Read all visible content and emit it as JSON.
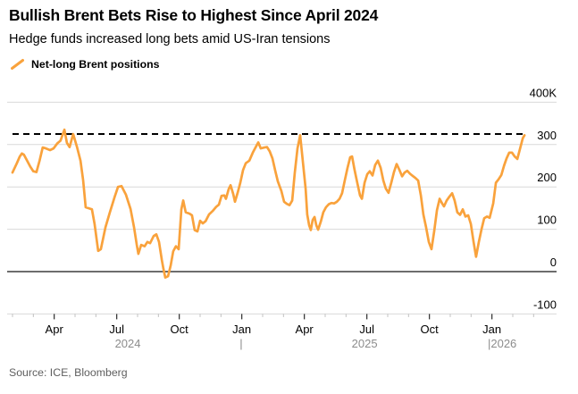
{
  "header": {
    "title": "Bullish Brent Bets Rise to Highest Since April 2024",
    "subtitle": "Hedge funds increased long bets amid US-Iran tensions"
  },
  "legend": {
    "series_label": "Net-long Brent positions"
  },
  "source_line": "Source: ICE, Bloomberg",
  "colors": {
    "line": "#F9A23C",
    "gridline": "#D9D9D9",
    "zero_line": "#3D3D3D",
    "reference_dashed": "#000000",
    "axis_text": "#000000",
    "year_text": "#8C8C8C",
    "major_tick": "#2B2B2B",
    "minor_tick": "#C0C0C0",
    "source_text": "#5F5F5F"
  },
  "chart_data": {
    "type": "line",
    "title": "Bullish Brent Bets Rise to Highest Since April 2024",
    "y_unit": "K (thousands of contracts)",
    "y_range": [
      -100,
      400
    ],
    "y_ticks": [
      {
        "v": 400,
        "label": "400K"
      },
      {
        "v": 300,
        "label": "300"
      },
      {
        "v": 200,
        "label": "200"
      },
      {
        "v": 100,
        "label": "100"
      },
      {
        "v": 0,
        "label": "0"
      },
      {
        "v": -100,
        "label": "-100"
      }
    ],
    "x_unit": "months since 2024-02-01 (weekly positioning data, values estimated from gridlines)",
    "x_range": [
      0,
      25.3
    ],
    "x_major_ticks": [
      {
        "t": 2,
        "label": "Apr"
      },
      {
        "t": 5,
        "label": "Jul"
      },
      {
        "t": 8,
        "label": "Oct"
      },
      {
        "t": 11,
        "label": "Jan"
      },
      {
        "t": 14,
        "label": "Apr"
      },
      {
        "t": 17,
        "label": "Jul"
      },
      {
        "t": 20,
        "label": "Oct"
      },
      {
        "t": 23,
        "label": "Jan"
      }
    ],
    "x_minor_ticks_months": [
      0,
      1,
      3,
      4,
      6,
      7,
      9,
      10,
      12,
      13,
      15,
      16,
      18,
      19,
      21,
      22,
      24,
      25
    ],
    "year_labels": [
      {
        "t": 5.53,
        "label": "2024",
        "anchor": "middle"
      },
      {
        "t": 10.97,
        "label": "|",
        "anchor": "middle"
      },
      {
        "t": 16.89,
        "label": "2025",
        "anchor": "middle"
      },
      {
        "t": 22.8,
        "label": "|2026",
        "anchor": "start"
      }
    ],
    "reference_line": {
      "value": 325,
      "style": "dashed"
    },
    "grid": "horizontal",
    "legend_position": "top-left",
    "series": [
      {
        "name": "Net-long Brent positions",
        "color": "#F9A23C",
        "points": [
          [
            0,
            234
          ],
          [
            0.2,
            255
          ],
          [
            0.35,
            272
          ],
          [
            0.45,
            279
          ],
          [
            0.55,
            276
          ],
          [
            0.7,
            262
          ],
          [
            0.85,
            248
          ],
          [
            1.0,
            237
          ],
          [
            1.15,
            235
          ],
          [
            1.3,
            262
          ],
          [
            1.45,
            293
          ],
          [
            1.6,
            291
          ],
          [
            1.8,
            287
          ],
          [
            1.97,
            291
          ],
          [
            2.15,
            303
          ],
          [
            2.3,
            309
          ],
          [
            2.49,
            335
          ],
          [
            2.61,
            304
          ],
          [
            2.74,
            294
          ],
          [
            2.91,
            325
          ],
          [
            3.09,
            295
          ],
          [
            3.26,
            262
          ],
          [
            3.39,
            215
          ],
          [
            3.51,
            152
          ],
          [
            3.69,
            149
          ],
          [
            3.81,
            147
          ],
          [
            3.94,
            112
          ],
          [
            4.11,
            49
          ],
          [
            4.24,
            53
          ],
          [
            4.46,
            105
          ],
          [
            4.67,
            140
          ],
          [
            4.89,
            175
          ],
          [
            5.06,
            200
          ],
          [
            5.23,
            202
          ],
          [
            5.44,
            182
          ],
          [
            5.66,
            148
          ],
          [
            5.83,
            105
          ],
          [
            5.96,
            63
          ],
          [
            6.04,
            42
          ],
          [
            6.17,
            63
          ],
          [
            6.34,
            60
          ],
          [
            6.47,
            70
          ],
          [
            6.6,
            67
          ],
          [
            6.77,
            84
          ],
          [
            6.9,
            88
          ],
          [
            7.03,
            70
          ],
          [
            7.16,
            28
          ],
          [
            7.24,
            7
          ],
          [
            7.33,
            -14
          ],
          [
            7.46,
            -11
          ],
          [
            7.59,
            15
          ],
          [
            7.71,
            48
          ],
          [
            7.84,
            60
          ],
          [
            7.97,
            53
          ],
          [
            8.1,
            147
          ],
          [
            8.19,
            168
          ],
          [
            8.31,
            140
          ],
          [
            8.49,
            137
          ],
          [
            8.61,
            133
          ],
          [
            8.74,
            98
          ],
          [
            8.87,
            95
          ],
          [
            9.0,
            120
          ],
          [
            9.13,
            114
          ],
          [
            9.26,
            119
          ],
          [
            9.43,
            135
          ],
          [
            9.6,
            143
          ],
          [
            9.77,
            153
          ],
          [
            9.9,
            158
          ],
          [
            10.03,
            179
          ],
          [
            10.16,
            180
          ],
          [
            10.24,
            172
          ],
          [
            10.37,
            195
          ],
          [
            10.46,
            204
          ],
          [
            10.59,
            183
          ],
          [
            10.67,
            165
          ],
          [
            10.8,
            186
          ],
          [
            10.93,
            210
          ],
          [
            11.06,
            240
          ],
          [
            11.19,
            256
          ],
          [
            11.36,
            262
          ],
          [
            11.53,
            281
          ],
          [
            11.7,
            297
          ],
          [
            11.79,
            305
          ],
          [
            11.91,
            291
          ],
          [
            12.09,
            293
          ],
          [
            12.21,
            294
          ],
          [
            12.34,
            284
          ],
          [
            12.47,
            267
          ],
          [
            12.6,
            239
          ],
          [
            12.73,
            213
          ],
          [
            12.9,
            190
          ],
          [
            13.03,
            165
          ],
          [
            13.16,
            160
          ],
          [
            13.29,
            157
          ],
          [
            13.42,
            168
          ],
          [
            13.54,
            232
          ],
          [
            13.67,
            291
          ],
          [
            13.8,
            322
          ],
          [
            13.93,
            260
          ],
          [
            14.06,
            196
          ],
          [
            14.14,
            135
          ],
          [
            14.23,
            110
          ],
          [
            14.31,
            98
          ],
          [
            14.4,
            122
          ],
          [
            14.49,
            129
          ],
          [
            14.57,
            110
          ],
          [
            14.66,
            99
          ],
          [
            14.79,
            118
          ],
          [
            14.91,
            140
          ],
          [
            15.04,
            152
          ],
          [
            15.17,
            159
          ],
          [
            15.3,
            162
          ],
          [
            15.43,
            161
          ],
          [
            15.56,
            165
          ],
          [
            15.69,
            172
          ],
          [
            15.81,
            185
          ],
          [
            15.94,
            215
          ],
          [
            16.07,
            245
          ],
          [
            16.2,
            270
          ],
          [
            16.29,
            272
          ],
          [
            16.41,
            240
          ],
          [
            16.54,
            210
          ],
          [
            16.67,
            180
          ],
          [
            16.76,
            172
          ],
          [
            16.89,
            210
          ],
          [
            17.02,
            230
          ],
          [
            17.14,
            237
          ],
          [
            17.27,
            227
          ],
          [
            17.4,
            252
          ],
          [
            17.53,
            262
          ],
          [
            17.66,
            245
          ],
          [
            17.79,
            215
          ],
          [
            17.91,
            196
          ],
          [
            18.04,
            186
          ],
          [
            18.17,
            210
          ],
          [
            18.3,
            235
          ],
          [
            18.43,
            254
          ],
          [
            18.56,
            240
          ],
          [
            18.69,
            225
          ],
          [
            18.81,
            234
          ],
          [
            18.94,
            238
          ],
          [
            19.07,
            231
          ],
          [
            19.2,
            226
          ],
          [
            19.33,
            221
          ],
          [
            19.46,
            215
          ],
          [
            19.59,
            180
          ],
          [
            19.71,
            135
          ],
          [
            19.84,
            105
          ],
          [
            19.97,
            70
          ],
          [
            20.1,
            53
          ],
          [
            20.23,
            95
          ],
          [
            20.36,
            145
          ],
          [
            20.49,
            172
          ],
          [
            20.61,
            161
          ],
          [
            20.7,
            154
          ],
          [
            20.83,
            168
          ],
          [
            20.96,
            177
          ],
          [
            21.09,
            185
          ],
          [
            21.21,
            168
          ],
          [
            21.34,
            140
          ],
          [
            21.47,
            134
          ],
          [
            21.6,
            147
          ],
          [
            21.73,
            130
          ],
          [
            21.86,
            133
          ],
          [
            21.99,
            112
          ],
          [
            22.12,
            70
          ],
          [
            22.24,
            35
          ],
          [
            22.37,
            70
          ],
          [
            22.5,
            100
          ],
          [
            22.63,
            126
          ],
          [
            22.76,
            130
          ],
          [
            22.89,
            127
          ],
          [
            23.06,
            161
          ],
          [
            23.19,
            210
          ],
          [
            23.32,
            218
          ],
          [
            23.45,
            228
          ],
          [
            23.58,
            250
          ],
          [
            23.7,
            267
          ],
          [
            23.83,
            281
          ],
          [
            23.96,
            281
          ],
          [
            24.09,
            272
          ],
          [
            24.22,
            266
          ],
          [
            24.35,
            291
          ],
          [
            24.48,
            315
          ],
          [
            24.56,
            322
          ]
        ]
      }
    ]
  }
}
